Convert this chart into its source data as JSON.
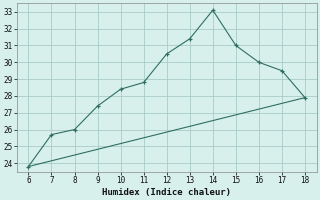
{
  "xlabel": "Humidex (Indice chaleur)",
  "line1_x": [
    6,
    7,
    8,
    9,
    10,
    11,
    12,
    13,
    14,
    15,
    16,
    17,
    18
  ],
  "line1_y": [
    23.8,
    25.7,
    26.0,
    27.4,
    28.4,
    28.8,
    30.5,
    31.4,
    33.1,
    31.0,
    30.0,
    29.5,
    27.9
  ],
  "line2_x": [
    6,
    18
  ],
  "line2_y": [
    23.8,
    27.9
  ],
  "line_color": "#2e6e62",
  "bg_color": "#d8f0ec",
  "grid_color": "#aaccc8",
  "xlim": [
    5.5,
    18.5
  ],
  "ylim": [
    23.5,
    33.5
  ],
  "xticks": [
    6,
    7,
    8,
    9,
    10,
    11,
    12,
    13,
    14,
    15,
    16,
    17,
    18
  ],
  "yticks": [
    24,
    25,
    26,
    27,
    28,
    29,
    30,
    31,
    32,
    33
  ],
  "tick_fontsize": 5.5,
  "xlabel_fontsize": 6.5
}
